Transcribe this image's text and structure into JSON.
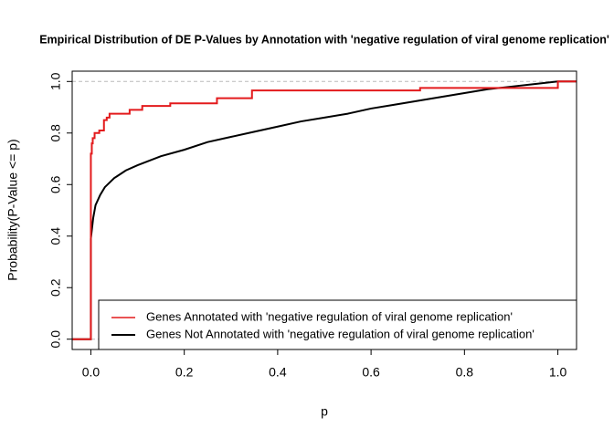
{
  "chart_data": {
    "type": "line",
    "title": "Empirical Distribution of DE P-Values by Annotation with 'negative regulation of viral genome replication'",
    "x_label": "p",
    "y_label": "Probability(P-Value <= p)",
    "xlim": [
      -0.04,
      1.04
    ],
    "ylim": [
      -0.04,
      1.04
    ],
    "xticks": [
      {
        "value": 0,
        "label": "0.0"
      },
      0.2,
      0.4,
      0.6,
      0.8,
      {
        "value": 1,
        "label": "1.0"
      }
    ],
    "yticks": [
      {
        "value": 0,
        "label": "0.0"
      },
      0.2,
      0.4,
      0.6,
      0.8,
      {
        "value": 1,
        "label": "1.0"
      }
    ],
    "reference_lines": [
      0,
      1
    ],
    "reference_color": "#bbbbbb",
    "legend_position": "bottom-right",
    "series": [
      {
        "name": "Genes Annotated with 'negative regulation of viral genome replication'",
        "color": "#e31a1c",
        "x": [
          -0.04,
          0,
          0,
          0.002,
          0.002,
          0.004,
          0.004,
          0.008,
          0.008,
          0.018,
          0.018,
          0.028,
          0.028,
          0.034,
          0.034,
          0.04,
          0.04,
          0.083,
          0.083,
          0.11,
          0.11,
          0.17,
          0.17,
          0.27,
          0.27,
          0.345,
          0.345,
          0.705,
          0.705,
          1.0,
          1.0,
          1.04
        ],
        "values": [
          0,
          0,
          0.72,
          0.72,
          0.76,
          0.76,
          0.78,
          0.78,
          0.8,
          0.8,
          0.81,
          0.81,
          0.85,
          0.85,
          0.86,
          0.86,
          0.875,
          0.875,
          0.89,
          0.89,
          0.905,
          0.905,
          0.915,
          0.915,
          0.935,
          0.935,
          0.965,
          0.965,
          0.975,
          0.975,
          1.0,
          1.0
        ]
      },
      {
        "name": "Genes Not Annotated with 'negative regulation of viral genome replication'",
        "color": "#000000",
        "x": [
          -0.04,
          0,
          0,
          0.005,
          0.01,
          0.02,
          0.03,
          0.05,
          0.075,
          0.1,
          0.15,
          0.2,
          0.25,
          0.3,
          0.35,
          0.4,
          0.45,
          0.5,
          0.55,
          0.6,
          0.65,
          0.7,
          0.75,
          0.8,
          0.85,
          0.9,
          0.95,
          1.0,
          1.04
        ],
        "values": [
          0,
          0,
          0.39,
          0.47,
          0.52,
          0.56,
          0.59,
          0.625,
          0.655,
          0.675,
          0.71,
          0.735,
          0.765,
          0.785,
          0.805,
          0.825,
          0.845,
          0.86,
          0.875,
          0.895,
          0.91,
          0.925,
          0.94,
          0.955,
          0.97,
          0.98,
          0.99,
          1.0,
          1.0
        ]
      }
    ]
  }
}
